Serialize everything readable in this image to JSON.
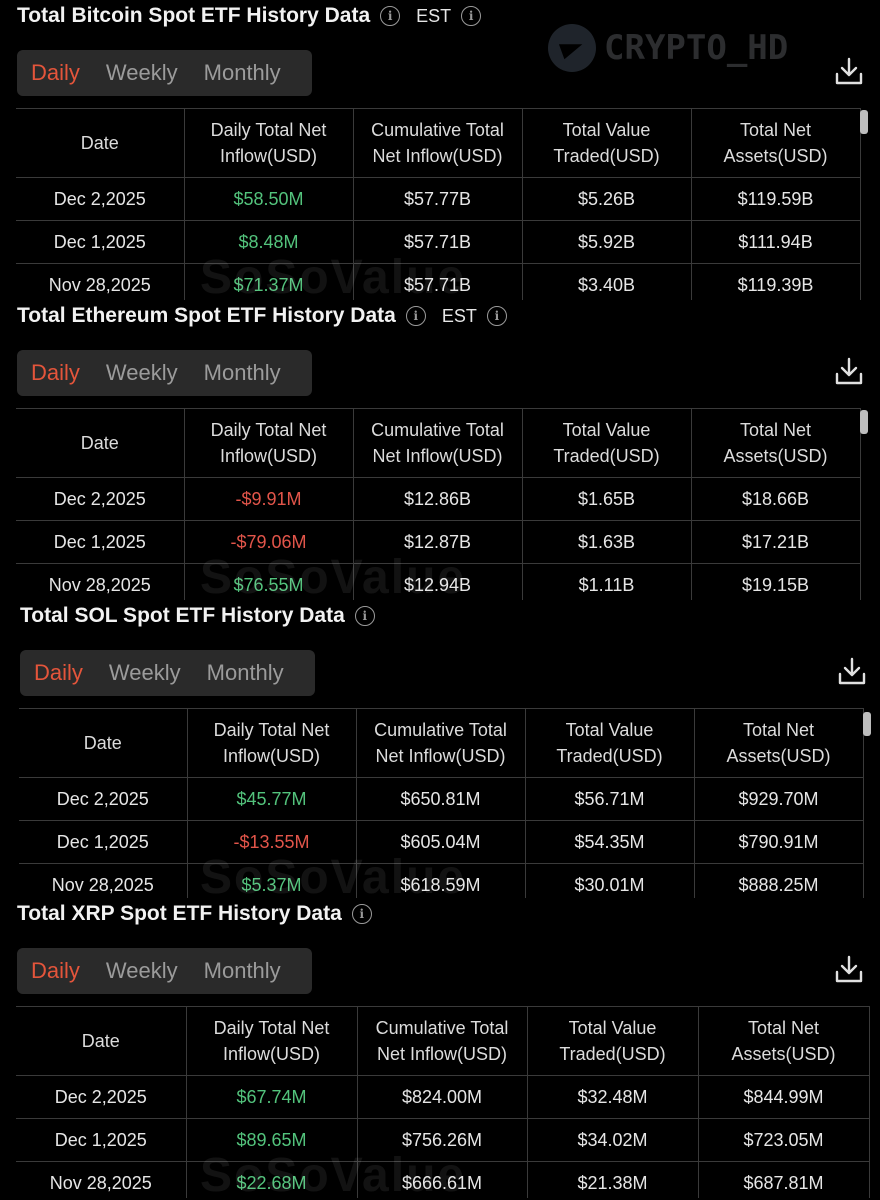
{
  "watermark_top": "CRYPTO_HD",
  "watermark_table": "SoSoValue",
  "tabs": [
    "Daily",
    "Weekly",
    "Monthly"
  ],
  "headers": [
    [
      "Date",
      ""
    ],
    [
      "Daily Total Net",
      "Inflow(USD)"
    ],
    [
      "Cumulative Total",
      "Net Inflow(USD)"
    ],
    [
      "Total Value",
      "Traded(USD)"
    ],
    [
      "Total Net",
      "Assets(USD)"
    ]
  ],
  "panels": [
    {
      "title": "Total Bitcoin Spot ETF History Data",
      "timezone": "EST",
      "rows": [
        {
          "date": "Dec 2,2025",
          "daily": "$58.50M",
          "daily_sign": "pos",
          "cum": "$57.77B",
          "traded": "$5.26B",
          "assets": "$119.59B"
        },
        {
          "date": "Dec 1,2025",
          "daily": "$8.48M",
          "daily_sign": "pos",
          "cum": "$57.71B",
          "traded": "$5.92B",
          "assets": "$111.94B"
        },
        {
          "date": "Nov 28,2025",
          "daily": "$71.37M",
          "daily_sign": "pos",
          "cum": "$57.71B",
          "traded": "$3.40B",
          "assets": "$119.39B"
        }
      ]
    },
    {
      "title": "Total Ethereum Spot ETF History Data",
      "timezone": "EST",
      "rows": [
        {
          "date": "Dec 2,2025",
          "daily": "-$9.91M",
          "daily_sign": "neg",
          "cum": "$12.86B",
          "traded": "$1.65B",
          "assets": "$18.66B"
        },
        {
          "date": "Dec 1,2025",
          "daily": "-$79.06M",
          "daily_sign": "neg",
          "cum": "$12.87B",
          "traded": "$1.63B",
          "assets": "$17.21B"
        },
        {
          "date": "Nov 28,2025",
          "daily": "$76.55M",
          "daily_sign": "pos",
          "cum": "$12.94B",
          "traded": "$1.11B",
          "assets": "$19.15B"
        }
      ]
    },
    {
      "title": "Total SOL Spot ETF History Data",
      "timezone": "",
      "rows": [
        {
          "date": "Dec 2,2025",
          "daily": "$45.77M",
          "daily_sign": "pos",
          "cum": "$650.81M",
          "traded": "$56.71M",
          "assets": "$929.70M"
        },
        {
          "date": "Dec 1,2025",
          "daily": "-$13.55M",
          "daily_sign": "neg",
          "cum": "$605.04M",
          "traded": "$54.35M",
          "assets": "$790.91M"
        },
        {
          "date": "Nov 28,2025",
          "daily": "$5.37M",
          "daily_sign": "pos",
          "cum": "$618.59M",
          "traded": "$30.01M",
          "assets": "$888.25M"
        }
      ]
    },
    {
      "title": "Total XRP Spot ETF History Data",
      "timezone": "",
      "rows": [
        {
          "date": "Dec 2,2025",
          "daily": "$67.74M",
          "daily_sign": "pos",
          "cum": "$824.00M",
          "traded": "$32.48M",
          "assets": "$844.99M"
        },
        {
          "date": "Dec 1,2025",
          "daily": "$89.65M",
          "daily_sign": "pos",
          "cum": "$756.26M",
          "traded": "$34.02M",
          "assets": "$723.05M"
        },
        {
          "date": "Nov 28,2025",
          "daily": "$22.68M",
          "daily_sign": "pos",
          "cum": "$666.61M",
          "traded": "$21.38M",
          "assets": "$687.81M"
        }
      ]
    }
  ],
  "colors": {
    "active_tab": "#e4553b",
    "positive": "#53c37c",
    "negative": "#e2554a",
    "background": "#000000"
  }
}
